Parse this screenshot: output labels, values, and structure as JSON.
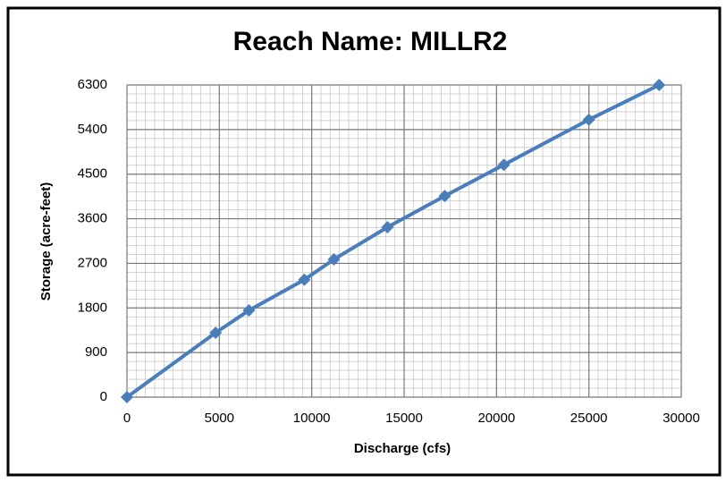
{
  "chart_data": {
    "type": "line",
    "title": "Reach Name: MILLR2",
    "x_label": "Discharge (cfs)",
    "y_label": "Storage (acre-feet)",
    "x": [
      0,
      4800,
      6600,
      9600,
      11200,
      14100,
      17200,
      20400,
      25000,
      28800
    ],
    "series": [
      {
        "name": "MILLR2",
        "color": "#4a7ebb",
        "values": [
          0,
          1300,
          1750,
          2370,
          2780,
          3430,
          4060,
          4690,
          5600,
          6300
        ]
      }
    ],
    "xlim": [
      0,
      30000
    ],
    "xticks": [
      0,
      5000,
      10000,
      15000,
      20000,
      25000,
      30000
    ],
    "ylim": [
      0,
      6300
    ],
    "yticks": [
      0,
      900,
      1800,
      2700,
      3600,
      4500,
      5400,
      6300
    ],
    "grid": true,
    "minor_grid": true,
    "legend": false
  }
}
